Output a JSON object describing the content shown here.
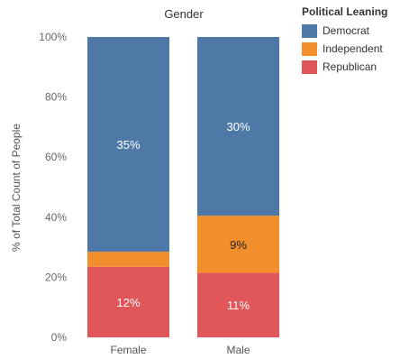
{
  "chart_data": {
    "type": "bar",
    "stacked": true,
    "title": "Gender",
    "ylabel": "% of Total Count of People",
    "categories": [
      "Female",
      "Male"
    ],
    "ylim": [
      0,
      100
    ],
    "y_ticks": [
      "0%",
      "20%",
      "40%",
      "60%",
      "80%",
      "100%"
    ],
    "grid": false,
    "legend": {
      "title": "Political Leaning",
      "placement": "right"
    },
    "series": [
      {
        "name": "Republican",
        "color": "#e15759",
        "values": [
          23.5,
          21.5
        ],
        "labels": [
          "12%",
          "11%"
        ]
      },
      {
        "name": "Independent",
        "color": "#f28e2b",
        "values": [
          5.0,
          19.0
        ],
        "labels": [
          "",
          "9%"
        ]
      },
      {
        "name": "Democrat",
        "color": "#4e79a7",
        "values": [
          71.5,
          59.5
        ],
        "labels": [
          "35%",
          "30%"
        ]
      }
    ]
  }
}
